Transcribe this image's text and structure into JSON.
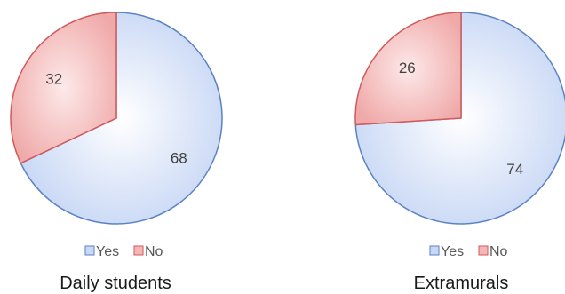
{
  "chart_data": [
    {
      "type": "pie",
      "title": "Daily students",
      "categories": [
        "Yes",
        "No"
      ],
      "values": [
        68,
        32
      ],
      "data_labels": [
        "68",
        "32"
      ],
      "colors": {
        "Yes": {
          "fill": "#c9d8f5",
          "stroke": "#5b82c4"
        },
        "No": {
          "fill": "#f3b7b7",
          "stroke": "#d05a5a"
        }
      },
      "legend": {
        "position": "bottom",
        "entries": [
          "Yes",
          "No"
        ]
      }
    },
    {
      "type": "pie",
      "title": "Extramurals",
      "categories": [
        "Yes",
        "No"
      ],
      "values": [
        74,
        26
      ],
      "data_labels": [
        "74",
        "26"
      ],
      "colors": {
        "Yes": {
          "fill": "#c9d8f5",
          "stroke": "#5b82c4"
        },
        "No": {
          "fill": "#f3b7b7",
          "stroke": "#d05a5a"
        }
      },
      "legend": {
        "position": "bottom",
        "entries": [
          "Yes",
          "No"
        ]
      }
    }
  ]
}
